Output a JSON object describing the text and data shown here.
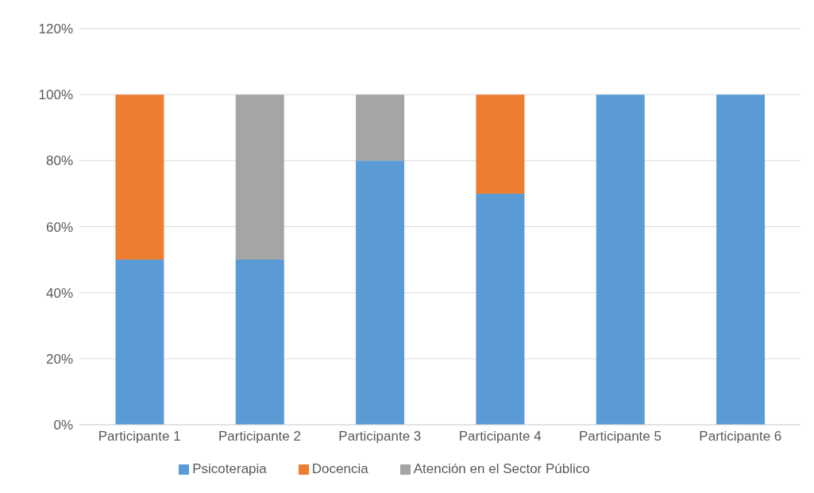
{
  "chart_data": {
    "type": "bar",
    "stacked": true,
    "categories": [
      "Participante 1",
      "Participante 2",
      "Participante 3",
      "Participante 4",
      "Participante 5",
      "Participante 6"
    ],
    "series": [
      {
        "name": "Psicoterapia",
        "color": "#5b9bd5",
        "values": [
          50,
          50,
          80,
          70,
          100,
          100
        ]
      },
      {
        "name": "Docencia",
        "color": "#ed7d31",
        "values": [
          50,
          0,
          0,
          30,
          0,
          0
        ]
      },
      {
        "name": "Atención en el Sector Público",
        "color": "#a5a5a5",
        "values": [
          0,
          50,
          20,
          0,
          0,
          0
        ]
      }
    ],
    "ylim": [
      0,
      120
    ],
    "yticks": [
      {
        "value": 0,
        "label": "0%"
      },
      {
        "value": 20,
        "label": "20%"
      },
      {
        "value": 40,
        "label": "40%"
      },
      {
        "value": 60,
        "label": "60%"
      },
      {
        "value": 80,
        "label": "80%"
      },
      {
        "value": 100,
        "label": "100%"
      },
      {
        "value": 120,
        "label": "120%"
      }
    ],
    "grid": "y",
    "legend": "bottom"
  }
}
